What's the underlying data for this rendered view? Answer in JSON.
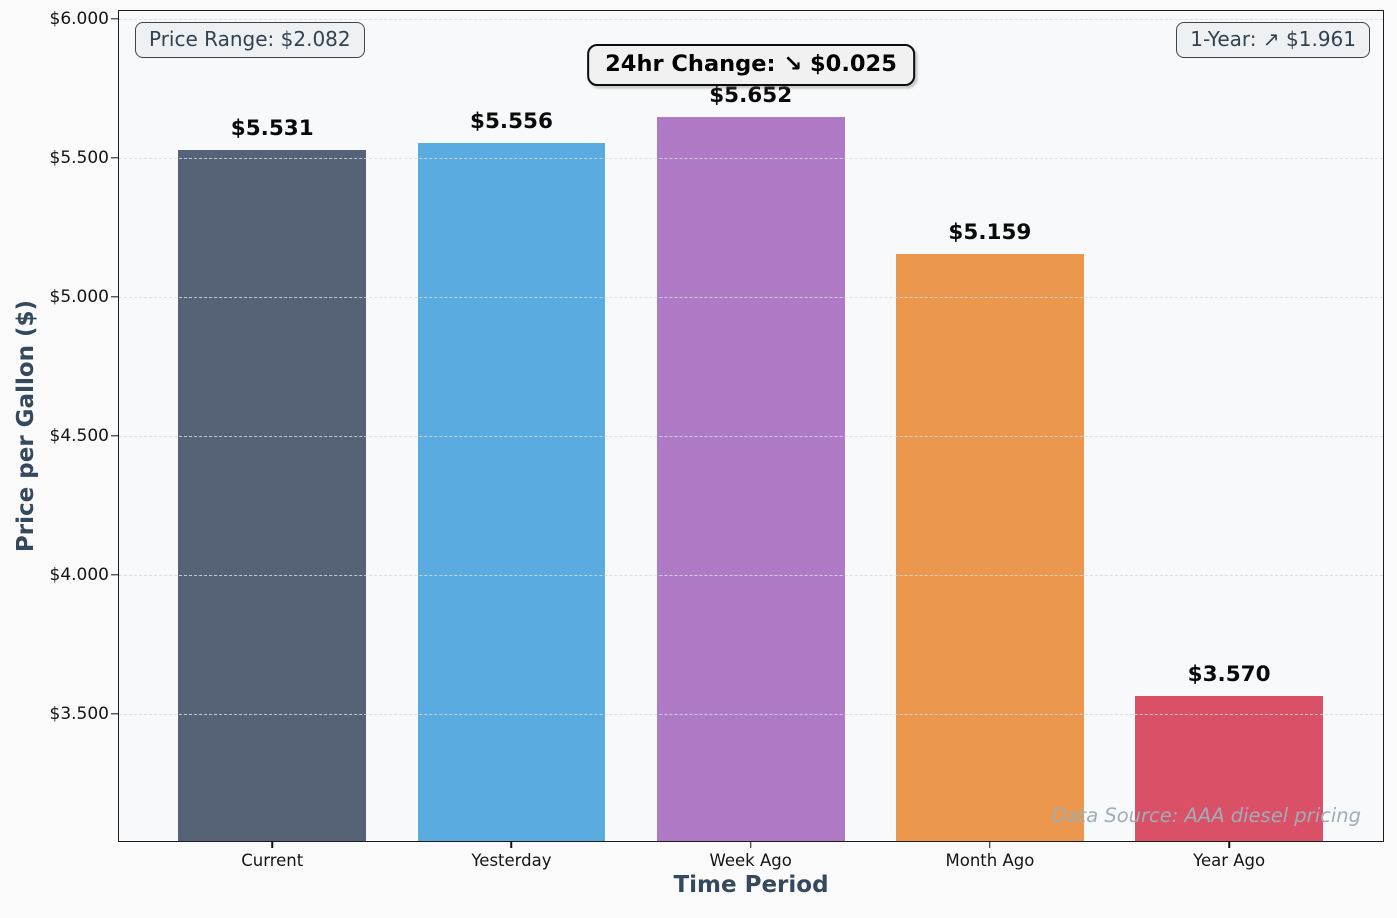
{
  "chart_data": {
    "type": "bar",
    "categories": [
      "Current",
      "Yesterday",
      "Week Ago",
      "Month Ago",
      "Year Ago"
    ],
    "values": [
      5.531,
      5.556,
      5.652,
      5.159,
      3.57
    ],
    "bar_value_labels": [
      "$5.531",
      "$5.556",
      "$5.652",
      "$5.159",
      "$3.570"
    ],
    "bar_colors": [
      "#566377",
      "#5aabdf",
      "#af7ac5",
      "#eb984e",
      "#d95067"
    ],
    "xlabel": "Time Period",
    "ylabel": "Price per Gallon ($)",
    "ylim": [
      3.043,
      6.029
    ],
    "yticks": [
      3.5,
      4.0,
      4.5,
      5.0,
      5.5,
      6.0
    ],
    "ytick_labels": [
      "$3.500",
      "$4.000",
      "$4.500",
      "$5.000",
      "$5.500",
      "$6.000"
    ],
    "grid": {
      "axis": "y",
      "style": "dashed",
      "drawn_over_bars": true
    },
    "legend": null,
    "annotations": [
      {
        "id": "price-range",
        "text": "Price Range: $2.082",
        "position": "top-left"
      },
      {
        "id": "change-24hr",
        "text": "24hr Change: ↘ $0.025",
        "position": "top-center"
      },
      {
        "id": "one-year",
        "text": "1-Year: ↗ $1.961",
        "position": "top-right"
      }
    ],
    "watermark": "Data Source: AAA diesel pricing",
    "accent_colors": {
      "axis_label_color": "#34495e",
      "annotation_text_color": "#33424e",
      "bar_label_color": "#0a0a0a"
    }
  }
}
